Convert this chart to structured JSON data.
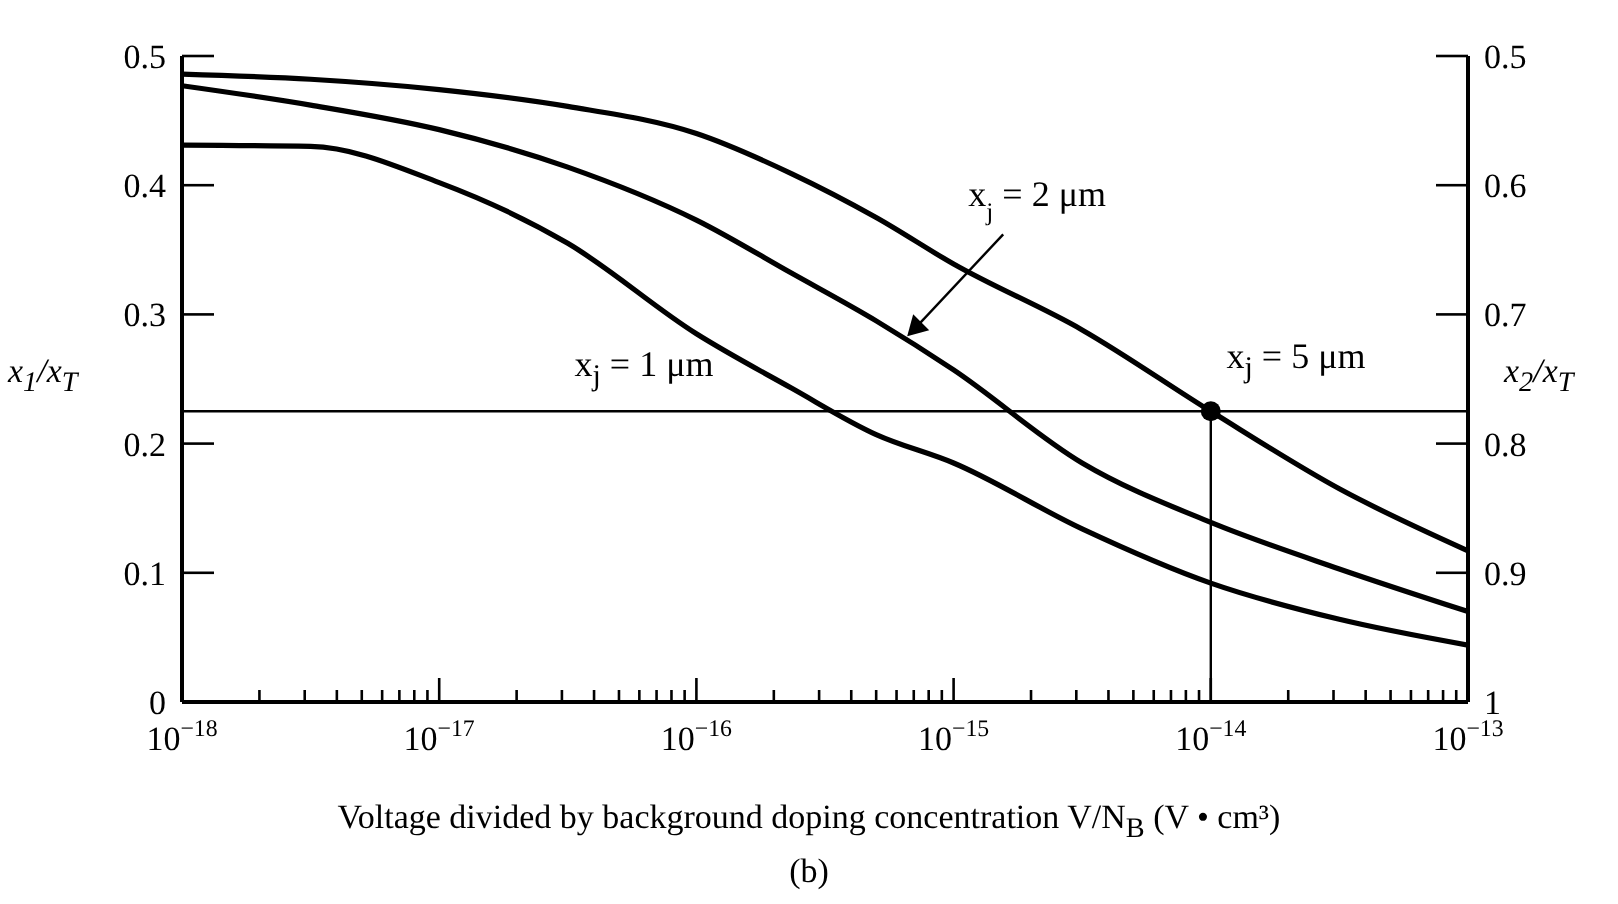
{
  "chart_data": {
    "type": "line",
    "xlabel": "Voltage divided by background doping concentration V/N$_{B}$ (V • cm³)",
    "ylabel": "x$_{1}$/x$_{T}$",
    "y2label": "x$_{2}$/x$_{T}$",
    "log": "x",
    "xlim": [
      1e-18,
      1e-13
    ],
    "ylim": [
      0,
      0.5
    ],
    "y2lim": [
      1,
      0.5
    ],
    "xticks": [
      {
        "value": 1e-18,
        "label": "10$^{−18}$"
      },
      {
        "value": 2e-18,
        "label": null
      },
      {
        "value": 3e-18,
        "label": null
      },
      {
        "value": 4e-18,
        "label": null
      },
      {
        "value": 5e-18,
        "label": null
      },
      {
        "value": 6e-18,
        "label": null
      },
      {
        "value": 7e-18,
        "label": null
      },
      {
        "value": 8e-18,
        "label": null
      },
      {
        "value": 9e-18,
        "label": null
      },
      {
        "value": 1e-17,
        "label": "10$^{−17}$"
      },
      {
        "value": 2e-17,
        "label": null
      },
      {
        "value": 3e-17,
        "label": null
      },
      {
        "value": 4e-17,
        "label": null
      },
      {
        "value": 5e-17,
        "label": null
      },
      {
        "value": 6e-17,
        "label": null
      },
      {
        "value": 7e-17,
        "label": null
      },
      {
        "value": 8e-17,
        "label": null
      },
      {
        "value": 9e-17,
        "label": null
      },
      {
        "value": 1e-16,
        "label": "10$^{−16}$"
      },
      {
        "value": 2e-16,
        "label": null
      },
      {
        "value": 3e-16,
        "label": null
      },
      {
        "value": 4e-16,
        "label": null
      },
      {
        "value": 5e-16,
        "label": null
      },
      {
        "value": 6e-16,
        "label": null
      },
      {
        "value": 7e-16,
        "label": null
      },
      {
        "value": 8e-16,
        "label": null
      },
      {
        "value": 9e-16,
        "label": null
      },
      {
        "value": 1e-15,
        "label": "10$^{−15}$"
      },
      {
        "value": 2e-15,
        "label": null
      },
      {
        "value": 3e-15,
        "label": null
      },
      {
        "value": 4e-15,
        "label": null
      },
      {
        "value": 5e-15,
        "label": null
      },
      {
        "value": 6e-15,
        "label": null
      },
      {
        "value": 7e-15,
        "label": null
      },
      {
        "value": 8e-15,
        "label": null
      },
      {
        "value": 9e-15,
        "label": null
      },
      {
        "value": 1e-14,
        "label": "10$^{−14}$"
      },
      {
        "value": 2e-14,
        "label": null
      },
      {
        "value": 3e-14,
        "label": null
      },
      {
        "value": 4e-14,
        "label": null
      },
      {
        "value": 5e-14,
        "label": null
      },
      {
        "value": 6e-14,
        "label": null
      },
      {
        "value": 7e-14,
        "label": null
      },
      {
        "value": 8e-14,
        "label": null
      },
      {
        "value": 9e-14,
        "label": null
      },
      {
        "value": 1e-13,
        "label": "10$^{−13}$"
      }
    ],
    "yticks": [
      0,
      0.1,
      0.2,
      0.3,
      0.4,
      0.5
    ],
    "y2ticks": [
      0.5,
      0.6,
      0.7,
      0.8,
      0.9,
      1
    ],
    "series": [
      {
        "color": "#000000",
        "x": [
          1e-18,
          3.16e-18,
          1e-17,
          3.16e-17,
          1e-16,
          2.34e-16,
          5e-16,
          1e-15,
          3.16e-15,
          1e-14,
          3.16e-14,
          1e-13
        ],
        "values": [
          0.486,
          0.482,
          0.474,
          0.461,
          0.44,
          0.409,
          0.375,
          0.339,
          0.288,
          0.225,
          0.165,
          0.117
        ]
      },
      {
        "color": "#000000",
        "x": [
          1e-18,
          3.16e-18,
          1e-17,
          3.16e-17,
          1e-16,
          2.34e-16,
          5e-16,
          1e-15,
          3.16e-15,
          1e-14,
          3.16e-14,
          1e-13
        ],
        "values": [
          0.477,
          0.462,
          0.443,
          0.414,
          0.373,
          0.332,
          0.295,
          0.257,
          0.185,
          0.139,
          0.103,
          0.07
        ]
      },
      {
        "color": "#000000",
        "x": [
          1e-18,
          3.16e-18,
          1e-17,
          3.16e-17,
          1e-16,
          2.34e-16,
          5e-16,
          1e-15,
          3.16e-15,
          1e-14,
          3.16e-14,
          1e-13
        ],
        "values": [
          0.431,
          0.43,
          0.402,
          0.355,
          0.285,
          0.243,
          0.207,
          0.185,
          0.134,
          0.092,
          0.064,
          0.044
        ]
      },
      {
        "type": "line",
        "color": "#000000",
        "x": [
          1e-14,
          1e-14
        ],
        "values": [
          0,
          0.225
        ]
      },
      {
        "type": "scatter",
        "marker": "circle",
        "color": "#000000",
        "x": [
          1e-14
        ],
        "values": [
          0.225
        ]
      }
    ],
    "ref_lines": [
      {
        "axis": "y",
        "value": 0.225,
        "color": "#000000"
      }
    ],
    "annotations": [
      "x$_{j}$ = 1 μm",
      {
        "text": "x$_{j}$ = 2 μm",
        "x": 6.6e-16,
        "y": 0.283
      },
      "x$_{j}$ = 5 μm",
      "(b)"
    ]
  }
}
